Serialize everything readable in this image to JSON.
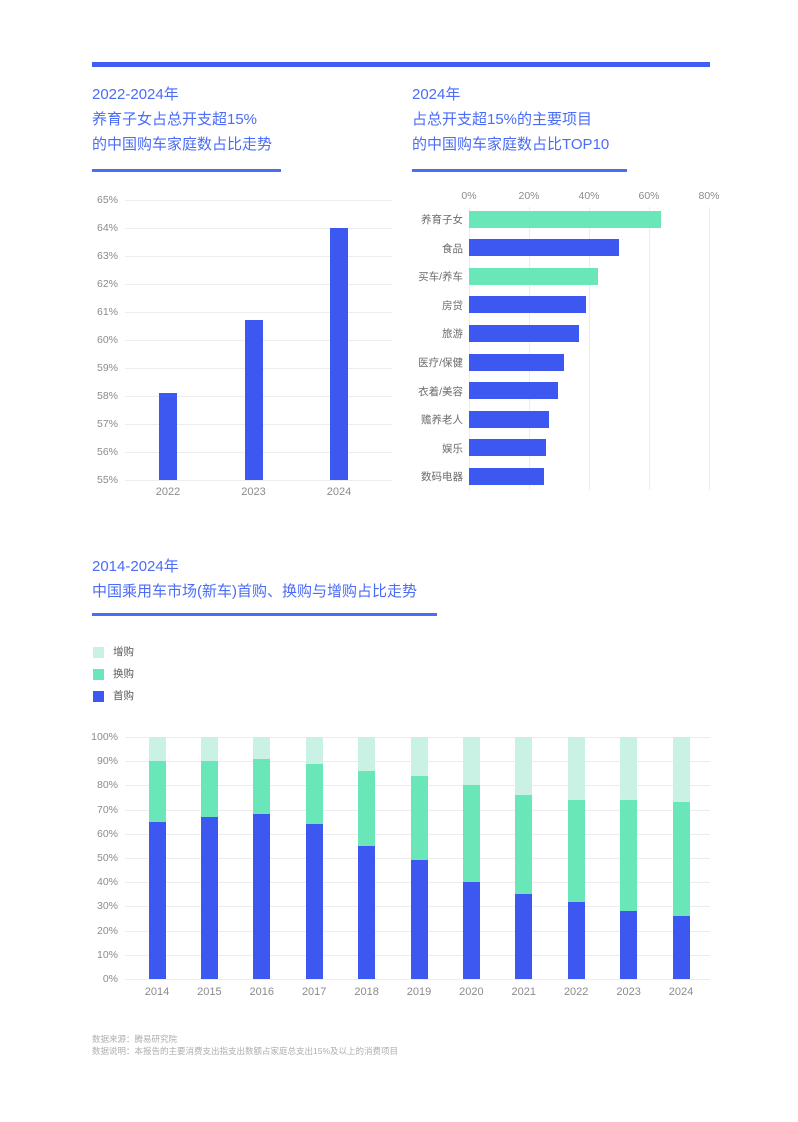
{
  "colors": {
    "blue": "#3C58F0",
    "mint": "#69E7B8",
    "mint_light": "#C9F2E5",
    "accent_rule": "#3F5EF3",
    "title_blue": "#4A6CF7",
    "grid": "#EDEDED",
    "axis_text": "#8B8B8B",
    "label_text": "#6B6B6B",
    "legend_text": "#5A5A5A",
    "footer_text": "#AEAEAE"
  },
  "chart_data": [
    {
      "id": "parenting-spend-trend",
      "type": "bar",
      "title_lines": [
        "2022-2024年",
        "养育子女占总开支超15%",
        "的中国购车家庭数占比走势"
      ],
      "categories": [
        "2022",
        "2023",
        "2024"
      ],
      "values": [
        58.1,
        60.7,
        64.0
      ],
      "ylabel": "",
      "xlabel": "",
      "ylim": [
        55,
        65
      ],
      "ytick_labels": [
        "65%",
        "64%",
        "63%",
        "62%",
        "61%",
        "60%",
        "59%",
        "58%",
        "57%",
        "56%",
        "55%"
      ],
      "bar_color": "blue",
      "grid": "horizontal",
      "legend_position": "none"
    },
    {
      "id": "top10-spend-items-2024",
      "type": "bar",
      "orientation": "horizontal",
      "title_lines": [
        "2024年",
        "占总开支超15%的主要项目",
        "的中国购车家庭数占比TOP10"
      ],
      "categories": [
        "养育子女",
        "食品",
        "买车/养车",
        "房贷",
        "旅游",
        "医疗/保健",
        "衣着/美容",
        "赡养老人",
        "娱乐",
        "数码电器"
      ],
      "values": [
        64,
        50,
        43,
        39,
        36.5,
        31.5,
        29.5,
        26.5,
        25.5,
        25
      ],
      "bar_colors": [
        "mint",
        "blue",
        "mint",
        "blue",
        "blue",
        "blue",
        "blue",
        "blue",
        "blue",
        "blue"
      ],
      "xlim": [
        0,
        80
      ],
      "xtick_labels": [
        "0%",
        "20%",
        "40%",
        "60%",
        "80%"
      ],
      "grid": "vertical",
      "legend_position": "none"
    },
    {
      "id": "purchase-type-trend",
      "type": "bar",
      "variant": "stacked-100",
      "title_lines": [
        "2014-2024年",
        "中国乘用车市场(新车)首购、换购与增购占比走势"
      ],
      "categories": [
        "2014",
        "2015",
        "2016",
        "2017",
        "2018",
        "2019",
        "2020",
        "2021",
        "2022",
        "2023",
        "2024"
      ],
      "series": [
        {
          "name": "首购",
          "color": "blue",
          "values": [
            65,
            67,
            68,
            64,
            55,
            49,
            40,
            35,
            32,
            28,
            26
          ]
        },
        {
          "name": "换购",
          "color": "mint",
          "values": [
            25,
            23,
            23,
            25,
            31,
            35,
            40,
            41,
            42,
            46,
            47
          ]
        },
        {
          "name": "增购",
          "color": "mint_light",
          "values": [
            10,
            10,
            9,
            11,
            14,
            16,
            20,
            24,
            26,
            26,
            27
          ]
        }
      ],
      "legend": [
        {
          "label": "增购",
          "color": "mint_light"
        },
        {
          "label": "换购",
          "color": "mint"
        },
        {
          "label": "首购",
          "color": "blue"
        }
      ],
      "ylim": [
        0,
        100
      ],
      "ytick_labels": [
        "100%",
        "90%",
        "80%",
        "70%",
        "60%",
        "50%",
        "40%",
        "30%",
        "20%",
        "10%",
        "0%"
      ],
      "grid": "horizontal",
      "legend_position": "top-left"
    }
  ],
  "page": {
    "footer": {
      "source_line": "数据来源：腾易研究院",
      "note_line": "数据说明：本报告的主要消费支出指支出数额占家庭总支出15%及以上的消费项目"
    }
  }
}
